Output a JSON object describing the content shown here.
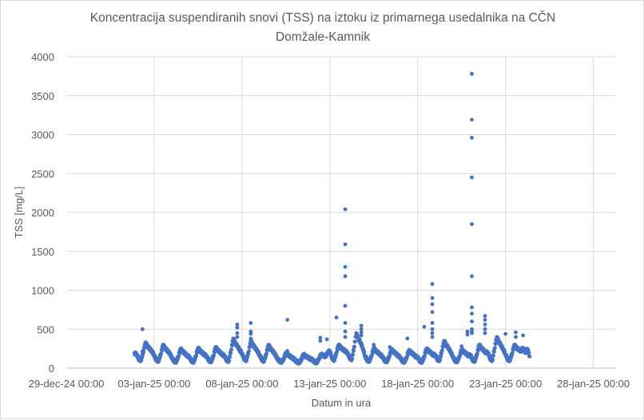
{
  "chart_data": {
    "type": "scatter",
    "title_lines": [
      "Koncentracija suspendiranih snovi (TSS) na iztoku iz primarnega usedalnika na CČN",
      "Domžale-Kamnik"
    ],
    "xlabel": "Datum in ura",
    "ylabel": "TSS [mg/L]",
    "ylim": [
      0,
      4000
    ],
    "yticks": [
      0,
      500,
      1000,
      1500,
      2000,
      2500,
      3000,
      3500,
      4000
    ],
    "xlim": [
      "2024-12-29 00:00",
      "2025-01-29 07:00"
    ],
    "xticks": [
      {
        "date": "2024-12-29 00:00",
        "label": "29-dec-24 00:00"
      },
      {
        "date": "2025-01-03 00:00",
        "label": "03-jan-25 00:00"
      },
      {
        "date": "2025-01-08 00:00",
        "label": "08-jan-25 00:00"
      },
      {
        "date": "2025-01-13 00:00",
        "label": "13-jan-25 00:00"
      },
      {
        "date": "2025-01-18 00:00",
        "label": "18-jan-25 00:00"
      },
      {
        "date": "2025-01-23 00:00",
        "label": "23-jan-25 00:00"
      },
      {
        "date": "2025-01-28 00:00",
        "label": "28-jan-25 00:00"
      }
    ],
    "grid": true,
    "legend": "none",
    "color": "#4472c4",
    "series_base": {
      "start": "2025-01-01 21:00",
      "step_hours": 3,
      "values": [
        190,
        180,
        115,
        100,
        200,
        330,
        280,
        250,
        215,
        165,
        105,
        90,
        180,
        300,
        255,
        225,
        195,
        140,
        90,
        80,
        150,
        250,
        215,
        190,
        160,
        145,
        90,
        80,
        155,
        260,
        220,
        195,
        170,
        150,
        95,
        85,
        160,
        270,
        230,
        205,
        175,
        160,
        100,
        90,
        230,
        380,
        320,
        280,
        230,
        190,
        120,
        100,
        210,
        350,
        300,
        260,
        220,
        170,
        110,
        90,
        180,
        300,
        250,
        220,
        180,
        130,
        90,
        80,
        120,
        200,
        170,
        150,
        130,
        110,
        80,
        70,
        110,
        180,
        150,
        140,
        120,
        110,
        80,
        70,
        120,
        180,
        160,
        150,
        200,
        220,
        130,
        100,
        200,
        300,
        260,
        240,
        220,
        200,
        130,
        110,
        260,
        450,
        380,
        330,
        260,
        160,
        100,
        90,
        160,
        260,
        220,
        200,
        170,
        150,
        95,
        85,
        150,
        240,
        210,
        190,
        160,
        140,
        90,
        80,
        140,
        230,
        200,
        180,
        150,
        140,
        90,
        80,
        150,
        250,
        220,
        200,
        170,
        170,
        110,
        100,
        220,
        350,
        300,
        260,
        210,
        150,
        95,
        85,
        150,
        240,
        210,
        190,
        160,
        170,
        105,
        90,
        180,
        300,
        260,
        230,
        200,
        200,
        120,
        100,
        250,
        400,
        340,
        290,
        240,
        180,
        110,
        100,
        190,
        300,
        260,
        240,
        220,
        260,
        200,
        250,
        150
      ]
    },
    "outliers": [
      {
        "x": "2025-01-02 08:00",
        "y": [
          500,
          215
        ]
      },
      {
        "x": "2025-01-07 17:30",
        "y": [
          560,
          520,
          450,
          400
        ]
      },
      {
        "x": "2025-01-08 12:00",
        "y": [
          580,
          470,
          440,
          380
        ]
      },
      {
        "x": "2025-01-10 14:00",
        "y": [
          620,
          220
        ]
      },
      {
        "x": "2025-01-12 11:00",
        "y": [
          390,
          350
        ]
      },
      {
        "x": "2025-01-12 20:00",
        "y": [
          370
        ]
      },
      {
        "x": "2025-01-13 09:00",
        "y": [
          650
        ]
      },
      {
        "x": "2025-01-13 21:00",
        "y": [
          2040,
          1590,
          1300,
          1180,
          800,
          580,
          470,
          400
        ]
      },
      {
        "x": "2025-01-14 19:00",
        "y": [
          545,
          500,
          460,
          420
        ]
      },
      {
        "x": "2025-01-15 12:00",
        "y": [
          300,
          250
        ]
      },
      {
        "x": "2025-01-16 10:00",
        "y": [
          270
        ]
      },
      {
        "x": "2025-01-17 10:00",
        "y": [
          380
        ]
      },
      {
        "x": "2025-01-18 09:00",
        "y": [
          530
        ]
      },
      {
        "x": "2025-01-18 20:00",
        "y": [
          1080,
          900,
          820,
          720,
          580,
          500,
          450,
          400
        ]
      },
      {
        "x": "2025-01-20 12:00",
        "y": [
          280
        ]
      },
      {
        "x": "2025-01-20 20:00",
        "y": [
          470,
          430
        ]
      },
      {
        "x": "2025-01-21 02:00",
        "y": [
          3780,
          3190,
          2960,
          2450,
          1850,
          1180,
          780,
          700,
          600,
          500,
          470,
          450
        ]
      },
      {
        "x": "2025-01-21 20:00",
        "y": [
          670,
          620,
          560,
          500,
          450
        ]
      },
      {
        "x": "2025-01-23 00:00",
        "y": [
          440
        ]
      },
      {
        "x": "2025-01-23 14:00",
        "y": [
          460,
          400
        ]
      },
      {
        "x": "2025-01-24 00:00",
        "y": [
          420
        ]
      }
    ]
  }
}
